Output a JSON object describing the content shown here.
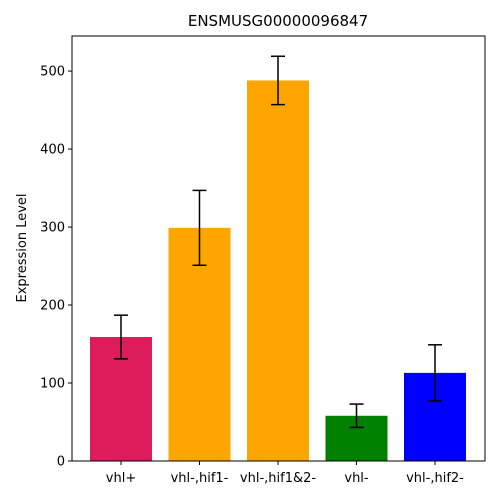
{
  "chart_data": {
    "type": "bar",
    "title": "ENSMUSG00000096847",
    "xlabel": "",
    "ylabel": "Expression Level",
    "categories": [
      "vhl+",
      "vhl-,hif1-",
      "vhl-,hif1&2-",
      "vhl-",
      "vhl-,hif2-"
    ],
    "values": [
      159,
      299,
      488,
      58,
      113
    ],
    "errors": [
      28,
      48,
      31,
      15,
      36
    ],
    "colors": [
      "#dc1c5b",
      "#ffa500",
      "#ffa500",
      "#008000",
      "#0000ff"
    ],
    "ylim": [
      0,
      545
    ],
    "yticks": [
      0,
      100,
      200,
      300,
      400,
      500
    ],
    "grid": false,
    "legend": "none"
  }
}
